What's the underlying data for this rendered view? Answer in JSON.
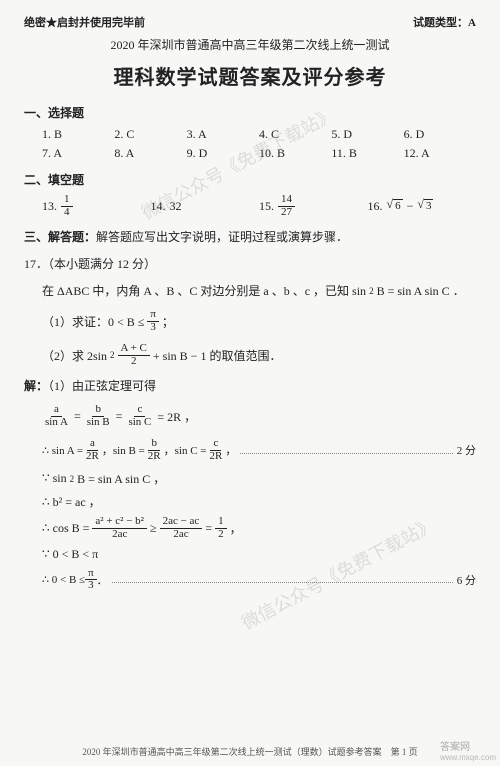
{
  "header": {
    "secret": "绝密★启封并使用完毕前",
    "type_label": "试题类型：",
    "type_value": "A",
    "subhead": "2020 年深圳市普通高中高三年级第二次线上统一测试",
    "title": "理科数学试题答案及评分参考"
  },
  "section1": {
    "heading": "一、选择题",
    "row1": [
      {
        "n": "1.",
        "a": "B"
      },
      {
        "n": "2.",
        "a": "C"
      },
      {
        "n": "3.",
        "a": "A"
      },
      {
        "n": "4.",
        "a": "C"
      },
      {
        "n": "5.",
        "a": "D"
      },
      {
        "n": "6.",
        "a": "D"
      }
    ],
    "row2": [
      {
        "n": "7.",
        "a": "A"
      },
      {
        "n": "8.",
        "a": "A"
      },
      {
        "n": "9.",
        "a": "D"
      },
      {
        "n": "10.",
        "a": "B"
      },
      {
        "n": "11.",
        "a": "B"
      },
      {
        "n": "12.",
        "a": "A"
      }
    ]
  },
  "section2": {
    "heading": "二、填空题",
    "items": {
      "i13": {
        "n": "13.",
        "num": "1",
        "den": "4"
      },
      "i14": {
        "n": "14.",
        "v": "32"
      },
      "i15": {
        "n": "15.",
        "num": "14",
        "den": "27"
      },
      "i16": {
        "n": "16.",
        "a": "6",
        "b": "3"
      }
    }
  },
  "section3": {
    "heading": "三、解答题：",
    "desc": "解答题应写出文字说明，证明过程或演算步骤．"
  },
  "q17": {
    "num": "17．（本小题满分 12 分）",
    "stem_a": "在 ΔABC 中，内角 A 、B 、C 对边分别是 a 、b 、c ，已知 sin",
    "stem_b": "B = sin A sin C ．",
    "p1_a": "（1）求证：0 < B ≤",
    "p1_frac": {
      "num": "π",
      "den": "3"
    },
    "p1_b": "；",
    "p2_a": "（2）求 2sin",
    "p2_frac": {
      "num": "A + C",
      "den": "2"
    },
    "p2_b": "+ sin B − 1 的取值范围．",
    "sol_label": "解：",
    "sol_1": "（1）由正弦定理可得",
    "eqline": {
      "t1": "a",
      "b1": "sin A",
      "t2": "b",
      "b2": "sin B",
      "t3": "c",
      "b3": "sin C",
      "eq": " = 2R ，"
    },
    "abc": {
      "pre": "∴ sin A = ",
      "a": {
        "num": "a",
        "den": "2R"
      },
      "mid1": " ，sin B = ",
      "b": {
        "num": "b",
        "den": "2R"
      },
      "mid2": " ，sin C = ",
      "c": {
        "num": "c",
        "den": "2R"
      },
      "tail": " ，"
    },
    "score2": "2 分",
    "sin2": {
      "pre": "∵ sin",
      "sup": "2",
      "mid": " B = sin A sin C ，"
    },
    "b2ac": "∴ b² = ac ，",
    "cos": {
      "pre": "∴ cos B = ",
      "f1": {
        "num": "a² + c² − b²",
        "den": "2ac"
      },
      "geq": " ≥ ",
      "f2": {
        "num": "2ac − ac",
        "den": "2ac"
      },
      "eq": " = ",
      "f3": {
        "num": "1",
        "den": "2"
      },
      "tail": " ，"
    },
    "range1": "∵ 0 < B < π",
    "range2_a": "∴ 0 < B ≤ ",
    "range2_frac": {
      "num": "π",
      "den": "3"
    },
    "range2_b": " ．",
    "score6": "6 分"
  },
  "watermarks": {
    "wm1": "微信公众号《免费下载站》",
    "wm2": "微信公众号《免费下载站》"
  },
  "footer": "2020 年深圳市普通高中高三年级第二次线上统一测试（理数）试题参考答案　第 1 页",
  "corner": {
    "brand": "答案网",
    "dom": "www.mxqe.com"
  }
}
